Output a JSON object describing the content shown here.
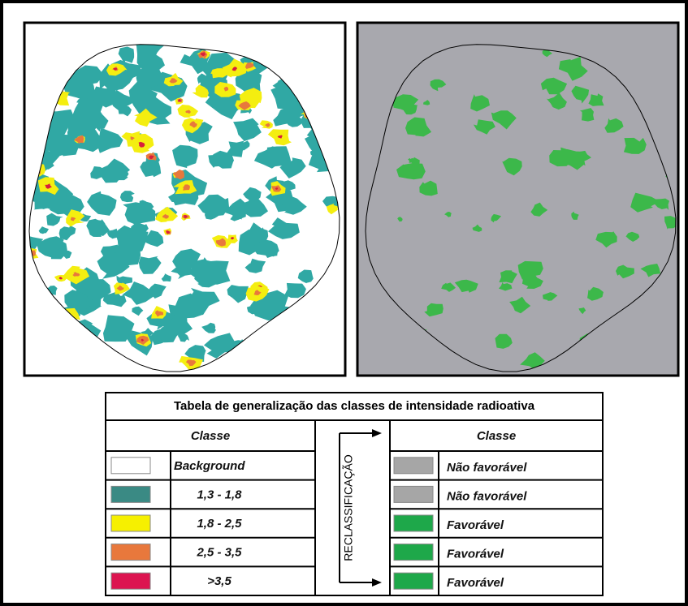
{
  "table": {
    "title": "Tabela de generalização das classes de intensidade radioativa",
    "left_header": "Classe",
    "right_header": "Classe",
    "arrow_label": "RECLASSIFICAÇÃO",
    "rows": [
      {
        "left": "Background",
        "left_color": "#ffffff",
        "right": "Não favorável",
        "right_color": "#a6a6a6"
      },
      {
        "left": "1,3 - 1,8",
        "left_color": "#3a8a84",
        "right": "Não favorável",
        "right_color": "#a6a6a6"
      },
      {
        "left": "1,8 - 2,5",
        "left_color": "#f6f000",
        "right": "Favorável",
        "right_color": "#1ea84a"
      },
      {
        "left": "2,5 - 3,5",
        "left_color": "#e8783c",
        "right": "Favorável",
        "right_color": "#1ea84a"
      },
      {
        "left": ">3,5",
        "left_color": "#dc1450",
        "right": "Favorável",
        "right_color": "#1ea84a"
      }
    ]
  }
}
